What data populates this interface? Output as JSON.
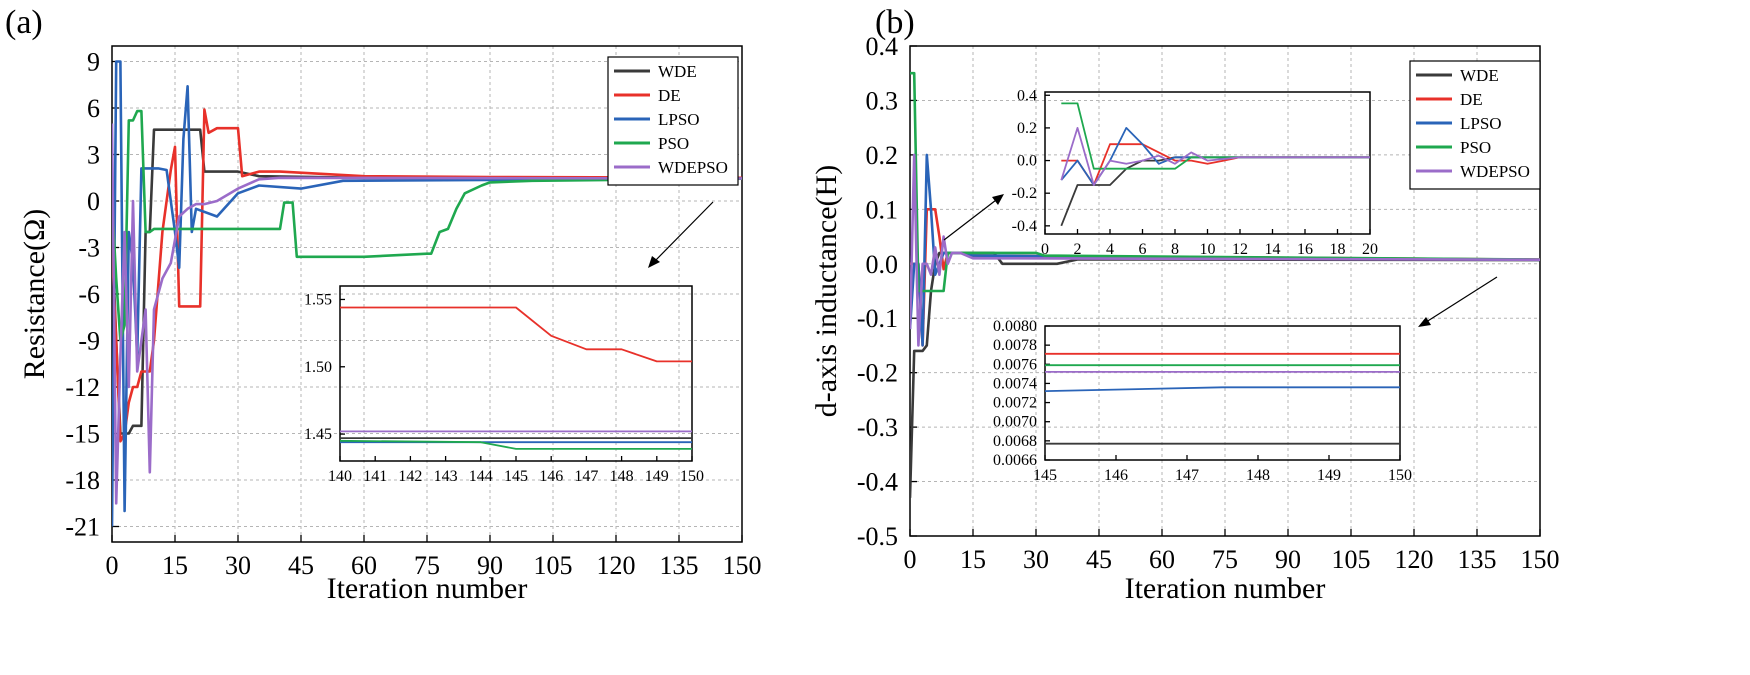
{
  "colors": {
    "WDE": "#3a3a3a",
    "DE": "#e8312a",
    "LPSO": "#2a64b8",
    "PSO": "#1fa84f",
    "WDEPSO": "#9b6cc9"
  },
  "chart_data": [
    {
      "type": "line",
      "panel": "(a)",
      "xlabel": "Iteration number",
      "ylabel": "Resistance(Ω)",
      "xlim": [
        0,
        150
      ],
      "ylim": [
        -22,
        10
      ],
      "xticks": [
        0,
        15,
        30,
        45,
        60,
        75,
        90,
        105,
        120,
        135,
        150
      ],
      "yticks": [
        -21,
        -18,
        -15,
        -12,
        -9,
        -6,
        -3,
        0,
        3,
        6,
        9
      ],
      "grid": true,
      "legend": {
        "position": "top-right",
        "entries": [
          "WDE",
          "DE",
          "LPSO",
          "PSO",
          "WDEPSO"
        ]
      },
      "series": [
        {
          "name": "WDE",
          "x": [
            0,
            1,
            2,
            3,
            4,
            5,
            6,
            7,
            8,
            9,
            10,
            12,
            21,
            22,
            30,
            35,
            60,
            90,
            150
          ],
          "y": [
            -2,
            -9,
            -15,
            -15,
            -15,
            -14.5,
            -14.5,
            -14.5,
            -2,
            -2,
            4.6,
            4.6,
            4.6,
            1.9,
            1.9,
            1.6,
            1.5,
            1.5,
            1.45
          ]
        },
        {
          "name": "DE",
          "x": [
            0,
            1,
            2,
            3,
            4,
            5,
            6,
            7,
            9,
            10,
            12,
            14,
            15,
            16,
            17,
            21,
            22,
            23,
            25,
            30,
            31,
            35,
            40,
            60,
            90,
            150
          ],
          "y": [
            -3,
            -9,
            -15.5,
            -15,
            -13,
            -12,
            -12,
            -11,
            -11,
            -9,
            -2,
            2,
            3.5,
            -6.8,
            -6.8,
            -6.8,
            5.9,
            4.4,
            4.7,
            4.7,
            1.6,
            1.9,
            1.9,
            1.6,
            1.55,
            1.5
          ]
        },
        {
          "name": "LPSO",
          "x": [
            0,
            1,
            2,
            3,
            4,
            5,
            6,
            7,
            8,
            9,
            11,
            13,
            15,
            16,
            17,
            18,
            19,
            20,
            25,
            30,
            35,
            45,
            55,
            150
          ],
          "y": [
            -21,
            9,
            9,
            -20,
            -2,
            -4,
            -10,
            2.1,
            2.1,
            2.1,
            2.1,
            2,
            -2,
            -4.3,
            4,
            7.4,
            -2,
            -0.5,
            -1,
            0.5,
            1,
            0.8,
            1.3,
            1.45
          ]
        },
        {
          "name": "PSO",
          "x": [
            0,
            1,
            2,
            3,
            4,
            5,
            6,
            7,
            8,
            9,
            10,
            15,
            40,
            41,
            43,
            44,
            60,
            75,
            76,
            78,
            80,
            82,
            84,
            88,
            90,
            100,
            150
          ],
          "y": [
            0,
            -5,
            -9,
            -8,
            5.2,
            5.2,
            5.8,
            5.8,
            -2,
            -2,
            -1.8,
            -1.8,
            -1.8,
            -0.1,
            -0.1,
            -3.6,
            -3.6,
            -3.4,
            -3.4,
            -2,
            -1.8,
            -0.5,
            0.5,
            1,
            1.2,
            1.3,
            1.44
          ]
        },
        {
          "name": "WDEPSO",
          "x": [
            0,
            1,
            2,
            3,
            4,
            5,
            6,
            7,
            8,
            9,
            10,
            12,
            14,
            16,
            18,
            20,
            22,
            25,
            30,
            35,
            40,
            150
          ],
          "y": [
            5,
            -19.5,
            -10,
            -2,
            -12,
            0,
            -11,
            -9,
            -7,
            -17.5,
            -7,
            -5,
            -4,
            -1,
            -0.5,
            -0.2,
            -0.2,
            0,
            0.8,
            1.4,
            1.5,
            1.45
          ]
        }
      ],
      "inset": {
        "xlim": [
          140,
          150
        ],
        "ylim": [
          1.43,
          1.56
        ],
        "xticks": [
          140,
          141,
          142,
          143,
          144,
          145,
          146,
          147,
          148,
          149,
          150
        ],
        "yticks": [
          1.45,
          1.5,
          1.55
        ],
        "ytick_labels": [
          "1.45",
          "1.50",
          "1.55"
        ],
        "series": [
          {
            "name": "DE",
            "x": [
              140,
              145,
              146,
              147,
              148,
              149,
              150
            ],
            "y": [
              1.544,
              1.544,
              1.523,
              1.513,
              1.513,
              1.504,
              1.504
            ]
          },
          {
            "name": "WDEPSO",
            "x": [
              140,
              150
            ],
            "y": [
              1.452,
              1.452
            ]
          },
          {
            "name": "WDE",
            "x": [
              140,
              150
            ],
            "y": [
              1.447,
              1.447
            ]
          },
          {
            "name": "LPSO",
            "x": [
              140,
              150
            ],
            "y": [
              1.444,
              1.444
            ]
          },
          {
            "name": "PSO",
            "x": [
              140,
              144,
              145,
              150
            ],
            "y": [
              1.445,
              1.444,
              1.439,
              1.439
            ]
          }
        ]
      }
    },
    {
      "type": "line",
      "panel": "(b)",
      "xlabel": "Iteration number",
      "ylabel": "d-axis inductance(H)",
      "xlim": [
        0,
        150
      ],
      "ylim": [
        -0.5,
        0.4
      ],
      "xticks": [
        0,
        15,
        30,
        45,
        60,
        75,
        90,
        105,
        120,
        135,
        150
      ],
      "yticks": [
        -0.5,
        -0.4,
        -0.3,
        -0.2,
        -0.1,
        0.0,
        0.1,
        0.2,
        0.3,
        0.4
      ],
      "ytick_labels": [
        "-0.5",
        "-0.4",
        "-0.3",
        "-0.2",
        "-0.1",
        "0.0",
        "0.1",
        "0.2",
        "0.3",
        "0.4"
      ],
      "grid": true,
      "legend": {
        "position": "top-right",
        "entries": [
          "WDE",
          "DE",
          "LPSO",
          "PSO",
          "WDEPSO"
        ]
      },
      "series": [
        {
          "name": "WDE",
          "x": [
            0,
            1,
            2,
            3,
            4,
            5,
            6,
            7,
            8,
            10,
            15,
            20,
            22,
            35,
            40,
            150
          ],
          "y": [
            -0.43,
            -0.16,
            -0.16,
            -0.16,
            -0.15,
            -0.05,
            0.0,
            0.02,
            0.02,
            0.02,
            0.02,
            0.02,
            0.0,
            0.0,
            0.008,
            0.0068
          ]
        },
        {
          "name": "DE",
          "x": [
            0,
            1,
            2,
            3,
            4,
            5,
            6,
            7,
            8,
            9,
            10,
            12,
            15,
            150
          ],
          "y": [
            0.0,
            0.0,
            0.0,
            -0.15,
            0.1,
            0.1,
            0.1,
            0.05,
            -0.01,
            0.02,
            0.02,
            0.02,
            0.015,
            0.0077
          ]
        },
        {
          "name": "LPSO",
          "x": [
            0,
            1,
            2,
            3,
            4,
            5,
            6,
            7,
            8,
            10,
            12,
            15,
            150
          ],
          "y": [
            -0.12,
            0.0,
            0.0,
            -0.15,
            0.2,
            0.1,
            -0.02,
            0.0,
            0.02,
            0.02,
            0.02,
            0.015,
            0.0073
          ]
        },
        {
          "name": "PSO",
          "x": [
            0,
            1,
            2,
            3,
            4,
            5,
            6,
            8,
            9,
            10,
            15,
            30,
            32,
            150
          ],
          "y": [
            0.35,
            0.35,
            -0.05,
            -0.05,
            -0.05,
            -0.05,
            -0.05,
            -0.05,
            0.02,
            0.02,
            0.02,
            0.02,
            0.015,
            0.0076
          ]
        },
        {
          "name": "WDEPSO",
          "x": [
            0,
            1,
            2,
            3,
            4,
            5,
            6,
            7,
            8,
            9,
            10,
            12,
            15,
            20,
            150
          ],
          "y": [
            -0.12,
            0.2,
            -0.15,
            0.0,
            0.0,
            -0.02,
            0.03,
            -0.02,
            0.05,
            0.0,
            0.02,
            0.02,
            0.01,
            0.01,
            0.0075
          ]
        }
      ],
      "inset_top": {
        "xlim": [
          0,
          20
        ],
        "ylim": [
          -0.45,
          0.42
        ],
        "xticks": [
          0,
          2,
          4,
          6,
          8,
          10,
          12,
          14,
          16,
          18,
          20
        ],
        "yticks": [
          -0.4,
          -0.2,
          0.0,
          0.2,
          0.4
        ],
        "ytick_labels": [
          "-0.4",
          "-0.2",
          "0.0",
          "0.2",
          "0.4"
        ],
        "series": [
          {
            "name": "WDE",
            "x": [
              1,
              2,
              3,
              4,
              5,
              6,
              7,
              8,
              10,
              12,
              20
            ],
            "y": [
              -0.4,
              -0.15,
              -0.15,
              -0.15,
              -0.05,
              0.0,
              0.0,
              0.02,
              0.02,
              0.02,
              0.02
            ]
          },
          {
            "name": "DE",
            "x": [
              1,
              2,
              3,
              4,
              5,
              6,
              7,
              8,
              9,
              10,
              11,
              12,
              20
            ],
            "y": [
              0.0,
              0.0,
              -0.15,
              0.1,
              0.1,
              0.1,
              0.05,
              0.0,
              0.0,
              -0.02,
              0.0,
              0.02,
              0.02
            ]
          },
          {
            "name": "LPSO",
            "x": [
              1,
              2,
              3,
              4,
              5,
              6,
              7,
              8,
              10,
              12,
              20
            ],
            "y": [
              -0.12,
              0.0,
              -0.15,
              0.0,
              0.2,
              0.1,
              -0.02,
              0.02,
              0.02,
              0.02,
              0.02
            ]
          },
          {
            "name": "PSO",
            "x": [
              1,
              2,
              3,
              4,
              6,
              8,
              9,
              10,
              12,
              20
            ],
            "y": [
              0.35,
              0.35,
              -0.05,
              -0.05,
              -0.05,
              -0.05,
              0.02,
              0.02,
              0.02,
              0.02
            ]
          },
          {
            "name": "WDEPSO",
            "x": [
              1,
              2,
              3,
              4,
              5,
              6,
              7,
              8,
              9,
              10,
              12,
              20
            ],
            "y": [
              -0.12,
              0.2,
              -0.15,
              0.0,
              -0.02,
              0.0,
              0.03,
              -0.02,
              0.05,
              0.0,
              0.02,
              0.02
            ]
          }
        ]
      },
      "inset_bottom": {
        "xlim": [
          145,
          150
        ],
        "ylim": [
          0.0066,
          0.008
        ],
        "xticks": [
          145,
          146,
          147,
          148,
          149,
          150
        ],
        "yticks": [
          0.0066,
          0.0068,
          0.007,
          0.0072,
          0.0074,
          0.0076,
          0.0078,
          0.008
        ],
        "ytick_labels": [
          "0.0066",
          "0.0068",
          "0.0070",
          "0.0072",
          "0.0074",
          "0.0076",
          "0.0078",
          "0.0080"
        ],
        "series": [
          {
            "name": "DE",
            "x": [
              145,
              150
            ],
            "y": [
              0.00771,
              0.00771
            ]
          },
          {
            "name": "PSO",
            "x": [
              145,
              150
            ],
            "y": [
              0.00759,
              0.00759
            ]
          },
          {
            "name": "WDEPSO",
            "x": [
              145,
              150
            ],
            "y": [
              0.00752,
              0.00752
            ]
          },
          {
            "name": "LPSO",
            "x": [
              145,
              147.5,
              150
            ],
            "y": [
              0.00732,
              0.00736,
              0.00736
            ]
          },
          {
            "name": "WDE",
            "x": [
              145,
              150
            ],
            "y": [
              0.00677,
              0.00677
            ]
          }
        ]
      }
    }
  ]
}
